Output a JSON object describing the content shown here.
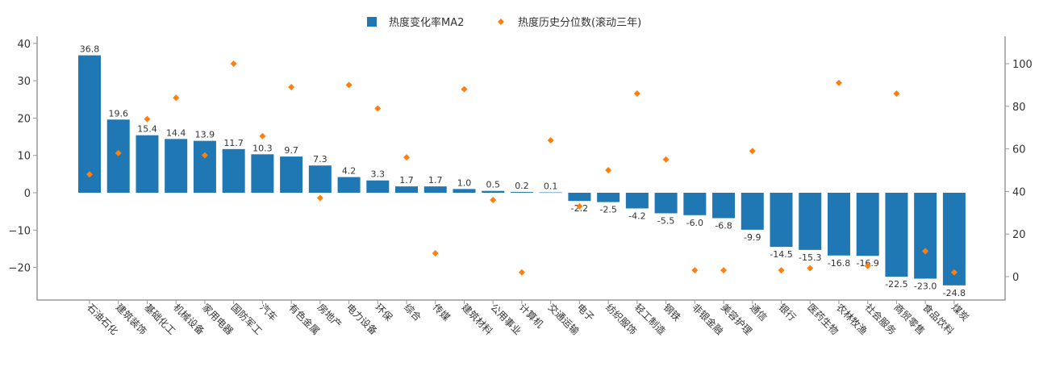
{
  "chart_data": {
    "type": "bar",
    "title": "",
    "xlabel": "",
    "ylabel": "",
    "legend": {
      "position": "top-center",
      "entries": [
        {
          "name": "热度变化率MA2",
          "marker": "square",
          "color": "#1f77b4"
        },
        {
          "name": "热度历史分位数(滚动三年)",
          "marker": "diamond",
          "color": "#ff7f0e"
        }
      ]
    },
    "categories": [
      "石油石化",
      "建筑装饰",
      "基础化工",
      "机械设备",
      "家用电器",
      "国防军工",
      "汽车",
      "有色金属",
      "房地产",
      "电力设备",
      "环保",
      "综合",
      "传媒",
      "建筑材料",
      "公用事业",
      "计算机",
      "交通运输",
      "电子",
      "纺织服饰",
      "轻工制造",
      "钢铁",
      "非银金融",
      "美容护理",
      "通信",
      "银行",
      "医药生物",
      "农林牧渔",
      "社会服务",
      "商贸零售",
      "食品饮料",
      "煤炭"
    ],
    "series": [
      {
        "name": "热度变化率MA2",
        "type": "bar",
        "axis": "left",
        "color": "#1f77b4",
        "values": [
          36.8,
          19.6,
          15.4,
          14.4,
          13.9,
          11.7,
          10.3,
          9.7,
          7.3,
          4.2,
          3.3,
          1.7,
          1.7,
          1.0,
          0.5,
          0.2,
          0.1,
          -2.2,
          -2.5,
          -4.2,
          -5.5,
          -6.0,
          -6.8,
          -9.9,
          -14.5,
          -15.3,
          -16.8,
          -16.9,
          -22.5,
          -23.0,
          -24.8
        ],
        "labels": [
          "36.8",
          "19.6",
          "15.4",
          "14.4",
          "13.9",
          "11.7",
          "10.3",
          "9.7",
          "7.3",
          "4.2",
          "3.3",
          "1.7",
          "1.7",
          "1.0",
          "0.5",
          "0.2",
          "0.1",
          "-2.2",
          "-2.5",
          "-4.2",
          "-5.5",
          "-6.0",
          "-6.8",
          "-9.9",
          "-14.5",
          "-15.3",
          "-16.8",
          "-16.9",
          "-22.5",
          "-23.0",
          "-24.8"
        ]
      },
      {
        "name": "热度历史分位数(滚动三年)",
        "type": "scatter",
        "axis": "right",
        "color": "#ff7f0e",
        "values": [
          48,
          58,
          74,
          84,
          57,
          100,
          66,
          89,
          37,
          90,
          79,
          56,
          11,
          88,
          36,
          2,
          64,
          33,
          50,
          86,
          55,
          3,
          3,
          59,
          3,
          4,
          91,
          5,
          86,
          12,
          2
        ]
      }
    ],
    "y_left": {
      "ylim": [
        -28.8,
        42
      ],
      "ticks": [
        -20,
        -10,
        0,
        10,
        20,
        30,
        40
      ]
    },
    "y_right": {
      "ylim": [
        -11,
        113
      ],
      "ticks": [
        0,
        20,
        40,
        60,
        80,
        100
      ]
    },
    "grid": false
  }
}
